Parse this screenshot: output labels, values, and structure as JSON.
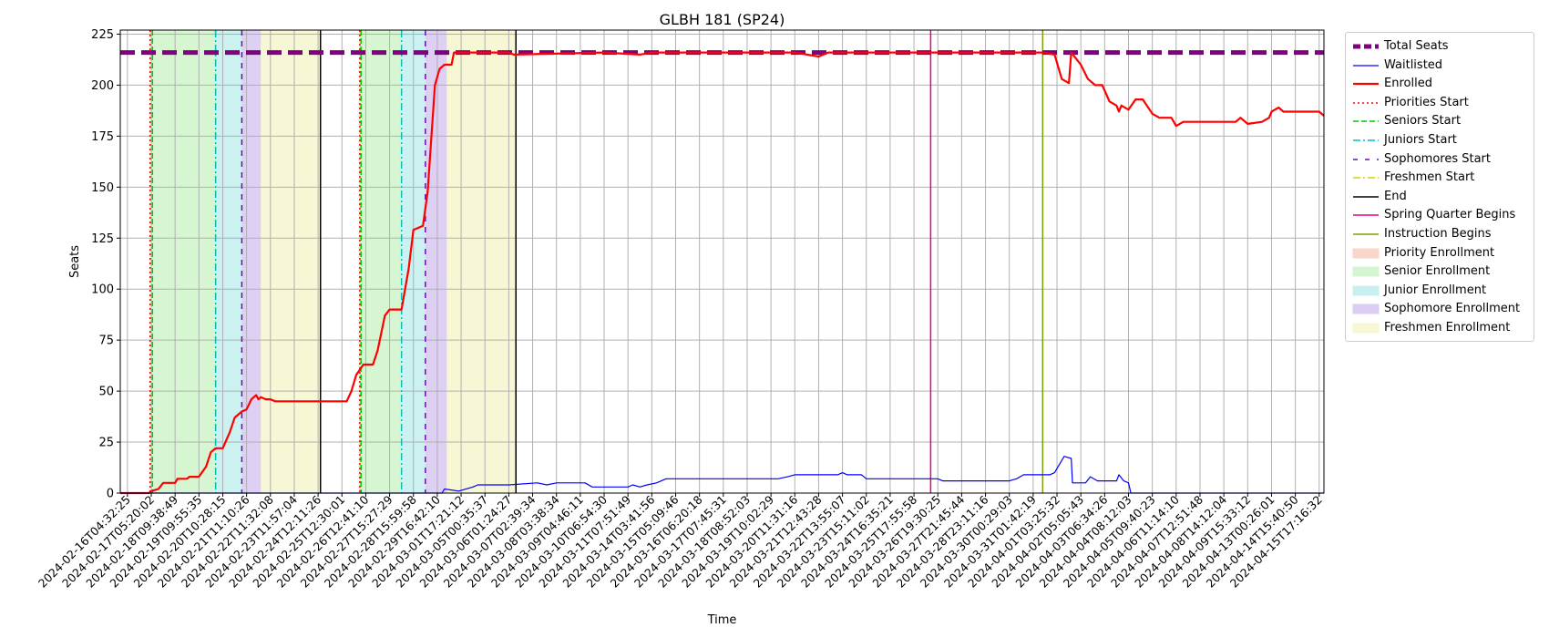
{
  "chart_data": {
    "type": "line",
    "title": "GLBH 181 (SP24)",
    "xlabel": "Time",
    "ylabel": "Seats",
    "ylim": [
      0,
      227
    ],
    "yticks": [
      0,
      25,
      50,
      75,
      100,
      125,
      150,
      175,
      200,
      225
    ],
    "grid": true,
    "legend_position": "outside-right",
    "x_tick_labels": [
      "2024-02-16T04:32:25",
      "2024-02-17T05:20:02",
      "2024-02-18T09:38:49",
      "2024-02-19T09:55:35",
      "2024-02-20T10:28:15",
      "2024-02-21T11:10:26",
      "2024-02-22T11:32:08",
      "2024-02-23T11:57:04",
      "2024-02-24T12:11:26",
      "2024-02-25T12:30:01",
      "2024-02-26T12:41:10",
      "2024-02-27T15:27:29",
      "2024-02-28T15:59:58",
      "2024-02-29T16:42:10",
      "2024-03-01T17:21:12",
      "2024-03-05T00:35:37",
      "2024-03-06T01:24:27",
      "2024-03-07T02:39:34",
      "2024-03-08T03:38:34",
      "2024-03-09T04:46:11",
      "2024-03-10T06:54:30",
      "2024-03-11T07:51:49",
      "2024-03-14T03:41:56",
      "2024-03-15T05:09:46",
      "2024-03-16T06:20:18",
      "2024-03-17T07:45:31",
      "2024-03-18T08:52:03",
      "2024-03-19T10:02:29",
      "2024-03-20T11:31:16",
      "2024-03-21T12:43:28",
      "2024-03-22T13:55:07",
      "2024-03-23T15:11:02",
      "2024-03-24T16:35:21",
      "2024-03-25T17:55:58",
      "2024-03-26T19:30:25",
      "2024-03-27T21:45:44",
      "2024-03-28T23:11:16",
      "2024-03-30T00:29:03",
      "2024-03-31T01:42:19",
      "2024-04-01T03:25:32",
      "2024-04-02T05:05:43",
      "2024-04-03T06:34:26",
      "2024-04-04T08:12:03",
      "2024-04-05T09:40:23",
      "2024-04-06T11:14:10",
      "2024-04-07T12:51:48",
      "2024-04-08T14:12:04",
      "2024-04-09T15:33:12",
      "2024-04-13T00:26:01",
      "2024-04-14T15:40:50",
      "2024-04-15T17:16:32"
    ],
    "x_range_index": [
      -0.3,
      50.2
    ],
    "total_seats": 216,
    "series": [
      {
        "name": "Enrolled",
        "color": "#ff0000",
        "points": [
          [
            -0.3,
            0
          ],
          [
            0.9,
            0
          ],
          [
            1.0,
            1
          ],
          [
            1.3,
            2
          ],
          [
            1.5,
            5
          ],
          [
            2.0,
            5
          ],
          [
            2.1,
            7
          ],
          [
            2.5,
            7
          ],
          [
            2.6,
            8
          ],
          [
            3.0,
            8
          ],
          [
            3.3,
            13
          ],
          [
            3.5,
            20
          ],
          [
            3.7,
            22
          ],
          [
            4.0,
            22
          ],
          [
            4.3,
            30
          ],
          [
            4.5,
            37
          ],
          [
            4.8,
            40
          ],
          [
            5.0,
            41
          ],
          [
            5.2,
            46
          ],
          [
            5.4,
            48
          ],
          [
            5.5,
            46
          ],
          [
            5.6,
            47
          ],
          [
            5.8,
            46
          ],
          [
            6.0,
            46
          ],
          [
            6.2,
            45
          ],
          [
            9.2,
            45
          ],
          [
            9.4,
            50
          ],
          [
            9.6,
            58
          ],
          [
            9.9,
            63
          ],
          [
            10.3,
            63
          ],
          [
            10.5,
            70
          ],
          [
            10.8,
            87
          ],
          [
            11.0,
            90
          ],
          [
            11.5,
            90
          ],
          [
            11.8,
            110
          ],
          [
            12.0,
            129
          ],
          [
            12.4,
            131
          ],
          [
            12.6,
            148
          ],
          [
            12.9,
            200
          ],
          [
            13.1,
            208
          ],
          [
            13.3,
            210
          ],
          [
            13.6,
            210
          ],
          [
            13.7,
            216
          ],
          [
            16.0,
            216
          ],
          [
            16.2,
            215
          ],
          [
            20.0,
            216
          ],
          [
            21.5,
            215
          ],
          [
            22.0,
            216
          ],
          [
            28.0,
            216
          ],
          [
            29.0,
            214
          ],
          [
            29.4,
            216
          ],
          [
            38.0,
            216
          ],
          [
            38.4,
            216
          ],
          [
            38.9,
            215
          ],
          [
            39.2,
            203
          ],
          [
            39.5,
            201
          ],
          [
            39.6,
            216
          ],
          [
            40.0,
            210
          ],
          [
            40.3,
            203
          ],
          [
            40.6,
            200
          ],
          [
            40.9,
            200
          ],
          [
            41.2,
            192
          ],
          [
            41.5,
            190
          ],
          [
            41.6,
            187
          ],
          [
            41.7,
            190
          ],
          [
            42.0,
            188
          ],
          [
            42.3,
            193
          ],
          [
            42.6,
            193
          ],
          [
            43.0,
            186
          ],
          [
            43.3,
            184
          ],
          [
            43.8,
            184
          ],
          [
            44.0,
            180
          ],
          [
            44.3,
            182
          ],
          [
            46.5,
            182
          ],
          [
            46.7,
            184
          ],
          [
            47.0,
            181
          ],
          [
            47.6,
            182
          ],
          [
            47.9,
            184
          ],
          [
            48.0,
            187
          ],
          [
            48.3,
            189
          ],
          [
            48.5,
            187
          ],
          [
            50.0,
            187
          ],
          [
            50.2,
            185
          ]
        ]
      },
      {
        "name": "Waitlisted",
        "color": "#0000ff",
        "points": [
          [
            -0.3,
            0
          ],
          [
            13.2,
            0
          ],
          [
            13.3,
            2
          ],
          [
            13.9,
            1
          ],
          [
            14.5,
            3
          ],
          [
            14.7,
            4
          ],
          [
            16.0,
            4
          ],
          [
            17.2,
            5
          ],
          [
            17.6,
            4
          ],
          [
            18.0,
            5
          ],
          [
            19.2,
            5
          ],
          [
            19.5,
            3
          ],
          [
            21.0,
            3
          ],
          [
            21.2,
            4
          ],
          [
            21.5,
            3
          ],
          [
            21.8,
            4
          ],
          [
            22.2,
            5
          ],
          [
            22.4,
            6
          ],
          [
            22.6,
            7
          ],
          [
            27.3,
            7
          ],
          [
            27.7,
            8
          ],
          [
            28.0,
            9
          ],
          [
            29.8,
            9
          ],
          [
            30.0,
            10
          ],
          [
            30.2,
            9
          ],
          [
            30.8,
            9
          ],
          [
            31.0,
            7
          ],
          [
            34.0,
            7
          ],
          [
            34.2,
            6
          ],
          [
            37.0,
            6
          ],
          [
            37.3,
            7
          ],
          [
            37.6,
            9
          ],
          [
            38.7,
            9
          ],
          [
            38.9,
            10
          ],
          [
            39.1,
            14
          ],
          [
            39.3,
            18
          ],
          [
            39.6,
            17
          ],
          [
            39.65,
            5
          ],
          [
            40.2,
            5
          ],
          [
            40.4,
            8
          ],
          [
            40.7,
            6
          ],
          [
            41.5,
            6
          ],
          [
            41.6,
            9
          ],
          [
            41.8,
            6
          ],
          [
            42.0,
            5
          ],
          [
            42.1,
            0
          ],
          [
            50.2,
            0
          ]
        ]
      }
    ],
    "legend": [
      {
        "label": "Total Seats",
        "style": "thick-dash",
        "color": "#800080"
      },
      {
        "label": "Waitlisted",
        "style": "line-thin",
        "color": "#0000ff"
      },
      {
        "label": "Enrolled",
        "style": "line-thick",
        "color": "#ff0000"
      },
      {
        "label": "Priorities Start",
        "style": "dotted",
        "color": "#ff0000"
      },
      {
        "label": "Seniors Start",
        "style": "dashed",
        "color": "#00cc00"
      },
      {
        "label": "Juniors Start",
        "style": "dashdot",
        "color": "#00bfbf"
      },
      {
        "label": "Sophomores Start",
        "style": "loosedash",
        "color": "#6a0dad"
      },
      {
        "label": "Freshmen Start",
        "style": "dashdot",
        "color": "#d4d400"
      },
      {
        "label": "End",
        "style": "line",
        "color": "#000000"
      },
      {
        "label": "Spring Quarter Begins",
        "style": "line",
        "color": "#e0008b"
      },
      {
        "label": "Instruction Begins",
        "style": "line",
        "color": "#7aa000"
      },
      {
        "label": "Priority Enrollment",
        "style": "patch",
        "color": "#f8d6c8"
      },
      {
        "label": "Senior Enrollment",
        "style": "patch",
        "color": "#d4f5d0"
      },
      {
        "label": "Junior Enrollment",
        "style": "patch",
        "color": "#c9f0f0"
      },
      {
        "label": "Sophomore Enrollment",
        "style": "patch",
        "color": "#dccdf2"
      },
      {
        "label": "Freshmen Enrollment",
        "style": "patch",
        "color": "#f7f7d4"
      }
    ],
    "spans": [
      {
        "kind": "Senior Enrollment",
        "from": 1.0,
        "to": 3.7,
        "color": "#d4f5d0"
      },
      {
        "kind": "Junior Enrollment",
        "from": 3.7,
        "to": 4.8,
        "color": "#c9f0f0"
      },
      {
        "kind": "Sophomore Enrollment",
        "from": 4.8,
        "to": 5.6,
        "color": "#dccdf2"
      },
      {
        "kind": "Freshmen Enrollment",
        "from": 5.6,
        "to": 8.1,
        "color": "#f7f7d4"
      },
      {
        "kind": "Senior Enrollment",
        "from": 9.7,
        "to": 11.5,
        "color": "#d4f5d0"
      },
      {
        "kind": "Junior Enrollment",
        "from": 11.5,
        "to": 12.5,
        "color": "#c9f0f0"
      },
      {
        "kind": "Sophomore Enrollment",
        "from": 12.5,
        "to": 13.4,
        "color": "#dccdf2"
      },
      {
        "kind": "Freshmen Enrollment",
        "from": 13.4,
        "to": 16.3,
        "color": "#f7f7d4"
      }
    ],
    "markers": [
      {
        "kind": "Priorities Start",
        "at": 0.95,
        "color": "#ff0000",
        "dash": "2,3"
      },
      {
        "kind": "Seniors Start",
        "at": 1.05,
        "color": "#00cc00",
        "dash": "6,3"
      },
      {
        "kind": "Juniors Start",
        "at": 3.7,
        "color": "#00bfbf",
        "dash": "8,3,2,3"
      },
      {
        "kind": "Sophomores Start",
        "at": 4.8,
        "color": "#6a0dad",
        "dash": "6,6"
      },
      {
        "kind": "End",
        "at": 8.1,
        "color": "#000000",
        "dash": ""
      },
      {
        "kind": "Priorities Start",
        "at": 9.75,
        "color": "#ff0000",
        "dash": "2,3"
      },
      {
        "kind": "Seniors Start",
        "at": 9.8,
        "color": "#00cc00",
        "dash": "6,3"
      },
      {
        "kind": "Juniors Start",
        "at": 11.5,
        "color": "#00bfbf",
        "dash": "8,3,2,3"
      },
      {
        "kind": "Sophomores Start",
        "at": 12.5,
        "color": "#6a0dad",
        "dash": "6,6"
      },
      {
        "kind": "End",
        "at": 16.3,
        "color": "#000000",
        "dash": ""
      },
      {
        "kind": "Spring Quarter Begins",
        "at": 33.7,
        "color": "#e0008b",
        "dash": ""
      },
      {
        "kind": "Instruction Begins",
        "at": 38.4,
        "color": "#7aa000",
        "dash": ""
      }
    ]
  }
}
